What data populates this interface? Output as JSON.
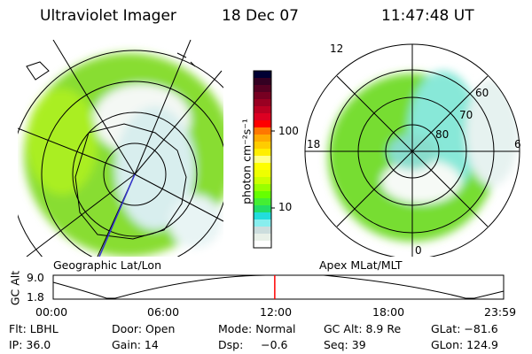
{
  "header": {
    "instrument": "Ultraviolet Imager",
    "date": "18 Dec 07",
    "time": "11:47:48 UT"
  },
  "left_map": {
    "caption": "Geographic Lat/Lon"
  },
  "right_map": {
    "caption": "Apex MLat/MLT",
    "mlt_labels": {
      "top": "12",
      "left": "18",
      "right": "6",
      "bottom": "0"
    },
    "lat_labels": [
      "80",
      "70",
      "60"
    ]
  },
  "colorbar": {
    "label": "photon cm⁻²s⁻¹",
    "ticks": [
      "100",
      "10"
    ],
    "scale": "log",
    "colors": [
      "#000033",
      "#330022",
      "#550022",
      "#770022",
      "#990022",
      "#bb0022",
      "#dd0022",
      "#ff0000",
      "#ff7700",
      "#ffaa00",
      "#ffcc00",
      "#ffee00",
      "#ffff88",
      "#ffff00",
      "#eeff00",
      "#ccff00",
      "#99ff00",
      "#66ff00",
      "#44ee33",
      "#22dd66",
      "#22dddd",
      "#88eeee",
      "#ccdddd",
      "#e8f0e8",
      "#ffffff"
    ]
  },
  "altitude_plot": {
    "ylabel": "GC Alt",
    "yticks": [
      "9.0",
      "1.8"
    ],
    "xticks": [
      "00:00",
      "06:00",
      "12:00",
      "18:00",
      "23:59"
    ],
    "current_marker_color": "#ff0000",
    "current_time": "11:47:48"
  },
  "info": {
    "flt": "Flt: LBHL",
    "ip": "IP: 36.0",
    "door": "Door: Open",
    "gain": "Gain: 14",
    "mode": "Mode: Normal",
    "dsp": "Dsp:     −0.6",
    "gc_alt": "GC Alt: 8.9 Re",
    "seq": "Seq: 39",
    "glat": "GLat: −81.6",
    "glon": "GLon: 124.9"
  }
}
